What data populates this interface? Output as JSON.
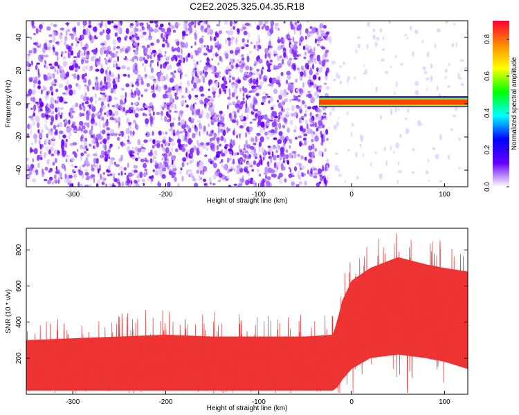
{
  "chart_data": [
    {
      "type": "heatmap",
      "title": "C2E2.2025.325.04.35.R18",
      "xlabel": "Height of straight line (km)",
      "ylabel": "Frequency (Hz)",
      "xlim": [
        -350,
        125
      ],
      "ylim": [
        -50,
        50
      ],
      "xticks": [
        -300,
        -200,
        -100,
        0,
        100
      ],
      "yticks": [
        -40,
        -20,
        0,
        20,
        40
      ],
      "xtick_labels": [
        "-300",
        "-200",
        "-100",
        "0",
        "100"
      ],
      "ytick_labels": [
        "-40",
        "-20",
        "0",
        "20",
        "40"
      ],
      "noise_region_km": [
        -350,
        -30
      ],
      "signal_band": {
        "x_start": -35,
        "x_end": 125,
        "freq_center": 1,
        "freq_halfwidth": 2
      },
      "colorbar": {
        "label": "Normalized spectral amplitude",
        "range": [
          0.0,
          0.9
        ],
        "ticks": [
          0.0,
          0.2,
          0.4,
          0.6,
          0.8
        ],
        "tick_labels": [
          "0.0",
          "0.2",
          "0.4",
          "0.6",
          "0.8"
        ],
        "colormap": [
          "#ffffff",
          "#6600ff",
          "#0000ff",
          "#00ffff",
          "#00ff00",
          "#ffff00",
          "#ff8800",
          "#ff0033"
        ]
      }
    },
    {
      "type": "line",
      "title": "",
      "xlabel": "Height of straight line (km)",
      "ylabel": "SNR (10 * v/v)",
      "xlim": [
        -350,
        125
      ],
      "ylim": [
        0,
        920
      ],
      "xticks": [
        -300,
        -200,
        -100,
        0,
        100
      ],
      "yticks": [
        200,
        400,
        600,
        800
      ],
      "xtick_labels": [
        "-300",
        "-200",
        "-100",
        "0",
        "100"
      ],
      "ytick_labels": [
        "200",
        "400",
        "600",
        "800"
      ],
      "color": "#ee3333",
      "series": [
        {
          "name": "SNR",
          "x": [
            -350,
            -300,
            -250,
            -200,
            -150,
            -100,
            -50,
            -20,
            -15,
            -10,
            0,
            20,
            50,
            80,
            100,
            125
          ],
          "lower": [
            20,
            20,
            20,
            20,
            20,
            20,
            20,
            20,
            40,
            80,
            140,
            200,
            220,
            200,
            180,
            140
          ],
          "upper": [
            300,
            310,
            320,
            330,
            320,
            320,
            320,
            330,
            420,
            520,
            630,
            700,
            760,
            720,
            700,
            680
          ],
          "peak": [
            400,
            430,
            450,
            480,
            460,
            450,
            440,
            460,
            550,
            640,
            760,
            860,
            910,
            880,
            860,
            850
          ]
        }
      ]
    }
  ]
}
